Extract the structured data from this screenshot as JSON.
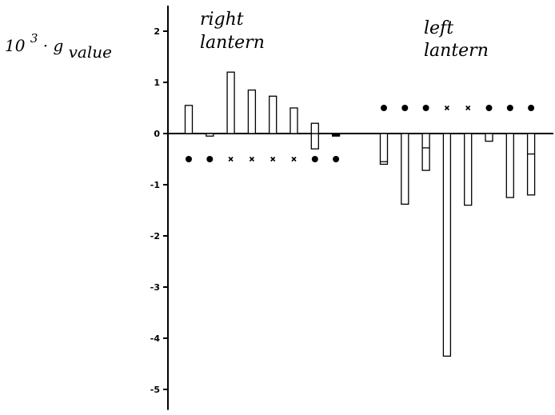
{
  "chart_data": {
    "type": "bar",
    "ylabel": {
      "base": "10",
      "exponent": "3",
      "dot": "·",
      "symbol": "g",
      "subscript": "value"
    },
    "yticks": [
      {
        "value": 2,
        "label": "2"
      },
      {
        "value": 1,
        "label": "1"
      },
      {
        "value": 0,
        "label": "0"
      },
      {
        "value": -1,
        "label": "-1"
      },
      {
        "value": -2,
        "label": "-2"
      },
      {
        "value": -3,
        "label": "-3"
      },
      {
        "value": -4,
        "label": "-4"
      },
      {
        "value": -5,
        "label": "-5"
      }
    ],
    "ylim": [
      -5.4,
      2.5
    ],
    "grid": false,
    "groups": [
      {
        "label_line1": "right",
        "label_line2": "lantern",
        "marker_level": -0.5,
        "bars": [
          {
            "value": 0.55,
            "marker": "dot"
          },
          {
            "value": -0.05,
            "marker": "dot"
          },
          {
            "value": 1.2,
            "marker": "x"
          },
          {
            "value": 0.85,
            "marker": "x"
          },
          {
            "value": 0.73,
            "marker": "x"
          },
          {
            "value": 0.5,
            "marker": "x"
          },
          {
            "value": -0.3,
            "inner": 0.2,
            "marker": "dot"
          },
          {
            "value": -0.05,
            "marker": "dot",
            "filled": true
          }
        ]
      },
      {
        "label_line1": "left",
        "label_line2": "lantern",
        "marker_level": 0.5,
        "bars": [
          {
            "value": -0.6,
            "inner": -0.55,
            "marker": "dot"
          },
          {
            "value": -1.38,
            "marker": "dot"
          },
          {
            "value": -0.72,
            "inner": -0.28,
            "marker": "dot"
          },
          {
            "value": -4.35,
            "marker": "x"
          },
          {
            "value": -1.4,
            "marker": "x"
          },
          {
            "value": -0.15,
            "marker": "dot"
          },
          {
            "value": -1.25,
            "marker": "dot"
          },
          {
            "value": -1.2,
            "inner": -0.4,
            "marker": "dot"
          }
        ]
      }
    ]
  }
}
